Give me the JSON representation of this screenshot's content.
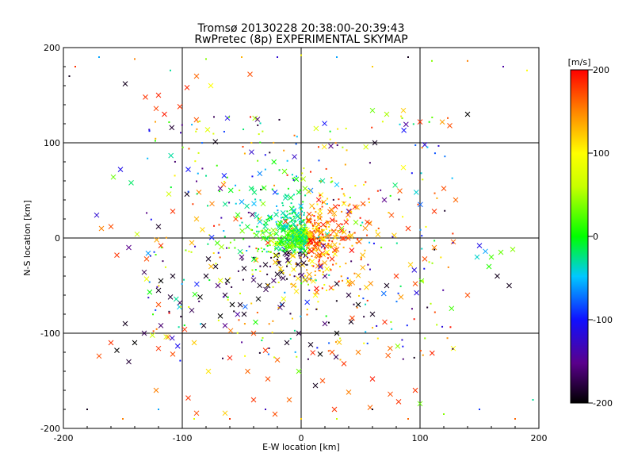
{
  "chart_data": {
    "type": "scatter",
    "title": "Tromsø 20130228 20:38:00-20:39:43",
    "subtitle": "RwPretec (8p) EXPERIMENTAL SKYMAP",
    "xlabel": "E-W location [km]",
    "ylabel": "N-S location [km]",
    "xlim": [
      -200,
      200
    ],
    "ylim": [
      -200,
      200
    ],
    "xticks": [
      -200,
      -100,
      0,
      100,
      200
    ],
    "yticks": [
      -200,
      -100,
      0,
      100,
      200
    ],
    "grid": true,
    "colorbar": {
      "label": "[m/s]",
      "min": -200,
      "max": 200,
      "ticks": [
        200,
        100,
        0,
        -100,
        -200
      ]
    },
    "markers": [
      "x",
      "dot"
    ],
    "points": [
      [
        -148,
        162,
        -190,
        "x"
      ],
      [
        -131,
        148,
        180,
        "x"
      ],
      [
        -122,
        136,
        175,
        "x"
      ],
      [
        -115,
        130,
        190,
        "x"
      ],
      [
        -96,
        158,
        185,
        "x"
      ],
      [
        -88,
        170,
        160,
        "x"
      ],
      [
        -76,
        160,
        100,
        "x"
      ],
      [
        -62,
        126,
        -110,
        "x"
      ],
      [
        -43,
        172,
        170,
        "x"
      ],
      [
        -120,
        150,
        185,
        "x"
      ],
      [
        -102,
        138,
        180,
        "x"
      ],
      [
        -152,
        72,
        -110,
        "x"
      ],
      [
        -158,
        64,
        30,
        "x"
      ],
      [
        -143,
        58,
        -20,
        "x"
      ],
      [
        -172,
        24,
        -120,
        "x"
      ],
      [
        -168,
        10,
        150,
        "x"
      ],
      [
        -160,
        12,
        170,
        "x"
      ],
      [
        -138,
        4,
        60,
        "x"
      ],
      [
        -155,
        -18,
        180,
        "x"
      ],
      [
        -130,
        -43,
        90,
        "x"
      ],
      [
        -120,
        -70,
        170,
        "x"
      ],
      [
        -95,
        72,
        -100,
        "x"
      ],
      [
        -86,
        48,
        150,
        "x"
      ],
      [
        -88,
        20,
        130,
        "x"
      ],
      [
        -92,
        -5,
        130,
        "x"
      ],
      [
        -78,
        -22,
        -190,
        "x"
      ],
      [
        -62,
        -45,
        -200,
        "x"
      ],
      [
        -55,
        20,
        170,
        "x"
      ],
      [
        -35,
        20,
        120,
        "x"
      ],
      [
        -28,
        -5,
        180,
        "x"
      ],
      [
        -50,
        -20,
        -160,
        "x"
      ],
      [
        -98,
        -96,
        180,
        "x"
      ],
      [
        -112,
        -104,
        160,
        "x"
      ],
      [
        -120,
        -116,
        180,
        "x"
      ],
      [
        -108,
        -122,
        170,
        "x"
      ],
      [
        -90,
        -110,
        120,
        "x"
      ],
      [
        -82,
        -92,
        -190,
        "x"
      ],
      [
        -64,
        -92,
        -150,
        "x"
      ],
      [
        -60,
        -126,
        190,
        "x"
      ],
      [
        -45,
        -140,
        160,
        "x"
      ],
      [
        -28,
        -148,
        170,
        "x"
      ],
      [
        -95,
        -168,
        180,
        "x"
      ],
      [
        -88,
        -184,
        170,
        "x"
      ],
      [
        -122,
        -160,
        150,
        "x"
      ],
      [
        -78,
        -140,
        110,
        "x"
      ],
      [
        -64,
        -184,
        120,
        "x"
      ],
      [
        -40,
        -170,
        180,
        "x"
      ],
      [
        -22,
        -185,
        170,
        "x"
      ],
      [
        -10,
        -170,
        160,
        "x"
      ],
      [
        -2,
        -140,
        30,
        "x"
      ],
      [
        12,
        -155,
        -190,
        "x"
      ],
      [
        18,
        -150,
        170,
        "x"
      ],
      [
        28,
        -180,
        180,
        "x"
      ],
      [
        40,
        -162,
        150,
        "x"
      ],
      [
        58,
        -178,
        160,
        "x"
      ],
      [
        75,
        -164,
        170,
        "x"
      ],
      [
        82,
        -172,
        180,
        "x"
      ],
      [
        96,
        -160,
        180,
        "x"
      ],
      [
        100,
        -174,
        30,
        "x"
      ],
      [
        60,
        -148,
        190,
        "x"
      ],
      [
        128,
        -116,
        100,
        "x"
      ],
      [
        150,
        -8,
        -110,
        "x"
      ],
      [
        155,
        -14,
        -60,
        "x"
      ],
      [
        160,
        -20,
        20,
        "x"
      ],
      [
        148,
        -20,
        -40,
        "x"
      ],
      [
        158,
        -30,
        10,
        "x"
      ],
      [
        168,
        -15,
        30,
        "x"
      ],
      [
        178,
        -12,
        40,
        "x"
      ],
      [
        165,
        -40,
        -190,
        "x"
      ],
      [
        175,
        -50,
        -190,
        "x"
      ],
      [
        140,
        -60,
        170,
        "x"
      ],
      [
        140,
        130,
        -200,
        "x"
      ],
      [
        125,
        118,
        170,
        "x"
      ],
      [
        100,
        122,
        180,
        "x"
      ],
      [
        86,
        134,
        120,
        "x"
      ],
      [
        72,
        130,
        50,
        "x"
      ],
      [
        60,
        134,
        30,
        "x"
      ],
      [
        104,
        98,
        -120,
        "x"
      ],
      [
        86,
        74,
        100,
        "x"
      ],
      [
        62,
        100,
        -190,
        "x"
      ],
      [
        120,
        52,
        170,
        "x"
      ],
      [
        130,
        40,
        160,
        "x"
      ],
      [
        112,
        28,
        180,
        "x"
      ],
      [
        70,
        40,
        -150,
        "x"
      ],
      [
        52,
        36,
        170,
        "x"
      ],
      [
        40,
        28,
        -100,
        "x"
      ],
      [
        30,
        56,
        -50,
        "x"
      ],
      [
        18,
        60,
        -30,
        "x"
      ],
      [
        8,
        50,
        -70,
        "x"
      ],
      [
        -2,
        48,
        -10,
        "x"
      ],
      [
        -12,
        44,
        -30,
        "x"
      ],
      [
        0,
        0,
        0,
        "x"
      ],
      [
        3,
        4,
        10,
        "x"
      ],
      [
        -3,
        -2,
        -10,
        "x"
      ],
      [
        5,
        -6,
        60,
        "x"
      ],
      [
        -6,
        5,
        -40,
        "x"
      ],
      [
        8,
        2,
        120,
        "x"
      ],
      [
        -8,
        -4,
        -80,
        "x"
      ],
      [
        12,
        -10,
        170,
        "x"
      ],
      [
        -10,
        10,
        30,
        "x"
      ],
      [
        14,
        8,
        150,
        "x"
      ],
      [
        -14,
        -12,
        -120,
        "x"
      ],
      [
        18,
        -16,
        180,
        "x"
      ],
      [
        -18,
        16,
        70,
        "x"
      ],
      [
        22,
        4,
        -30,
        "x"
      ],
      [
        -22,
        -6,
        100,
        "x"
      ],
      [
        26,
        -22,
        180,
        "x"
      ],
      [
        -26,
        22,
        -60,
        "x"
      ],
      [
        30,
        -12,
        160,
        "x"
      ],
      [
        -30,
        -28,
        -190,
        "x"
      ],
      [
        34,
        10,
        40,
        "x"
      ],
      [
        20,
        -40,
        -160,
        "x"
      ],
      [
        30,
        -48,
        -190,
        "x"
      ],
      [
        40,
        -60,
        -180,
        "x"
      ],
      [
        48,
        -70,
        -200,
        "x"
      ],
      [
        60,
        -80,
        -190,
        "x"
      ],
      [
        20,
        -90,
        -160,
        "x"
      ],
      [
        30,
        -100,
        -200,
        "x"
      ],
      [
        42,
        -88,
        -190,
        "x"
      ],
      [
        12,
        -60,
        100,
        "x"
      ],
      [
        -4,
        -56,
        110,
        "x"
      ],
      [
        -20,
        -38,
        -190,
        "x"
      ],
      [
        -28,
        -50,
        -200,
        "x"
      ],
      [
        -40,
        -44,
        -170,
        "x"
      ],
      [
        -48,
        -32,
        -190,
        "x"
      ],
      [
        -36,
        -64,
        -200,
        "x"
      ],
      [
        -16,
        -70,
        -180,
        "x"
      ],
      [
        -58,
        -70,
        -200,
        "x"
      ],
      [
        -70,
        -50,
        -160,
        "x"
      ],
      [
        -80,
        -40,
        -190,
        "x"
      ],
      [
        -48,
        -80,
        -190,
        "x"
      ],
      [
        -120,
        -55,
        -190,
        "x"
      ],
      [
        -110,
        -62,
        -180,
        "x"
      ],
      [
        -85,
        -62,
        -200,
        "x"
      ],
      [
        -102,
        -68,
        -170,
        "x"
      ],
      [
        -108,
        -40,
        -190,
        "x"
      ],
      [
        -118,
        -45,
        -200,
        "x"
      ],
      [
        -72,
        -30,
        -190,
        "x"
      ],
      [
        -64,
        -60,
        -180,
        "x"
      ],
      [
        -92,
        -76,
        -170,
        "x"
      ],
      [
        -68,
        -82,
        -200,
        "x"
      ],
      [
        -130,
        -22,
        170,
        "x"
      ],
      [
        -108,
        28,
        180,
        "x"
      ],
      [
        -118,
        -8,
        180,
        "x"
      ],
      [
        -75,
        36,
        150,
        "x"
      ],
      [
        -68,
        52,
        -150,
        "x"
      ],
      [
        -50,
        38,
        -60,
        "x"
      ],
      [
        -42,
        52,
        -20,
        "x"
      ],
      [
        -32,
        36,
        40,
        "x"
      ],
      [
        -22,
        48,
        -90,
        "x"
      ],
      [
        -14,
        70,
        30,
        "x"
      ],
      [
        80,
        -40,
        180,
        "x"
      ],
      [
        92,
        -28,
        120,
        "x"
      ],
      [
        104,
        -22,
        170,
        "x"
      ],
      [
        72,
        -50,
        -190,
        "x"
      ],
      [
        84,
        -62,
        140,
        "x"
      ],
      [
        96,
        -48,
        170,
        "x"
      ],
      [
        112,
        -10,
        150,
        "x"
      ],
      [
        128,
        -4,
        160,
        "x"
      ],
      [
        90,
        10,
        180,
        "x"
      ],
      [
        76,
        24,
        170,
        "x"
      ],
      [
        -40,
        -100,
        170,
        "x"
      ],
      [
        -30,
        -118,
        180,
        "x"
      ],
      [
        -20,
        -128,
        160,
        "x"
      ],
      [
        -12,
        -110,
        -190,
        "x"
      ],
      [
        -2,
        -100,
        -180,
        "x"
      ],
      [
        8,
        -112,
        -190,
        "x"
      ],
      [
        16,
        -122,
        -200,
        "x"
      ],
      [
        26,
        -120,
        170,
        "x"
      ],
      [
        36,
        -132,
        180,
        "x"
      ],
      [
        48,
        -120,
        150,
        "x"
      ],
      [
        -145,
        -10,
        -150,
        "x"
      ],
      [
        -132,
        -36,
        -170,
        "x"
      ],
      [
        -118,
        -92,
        -160,
        "x"
      ],
      [
        -132,
        -100,
        -170,
        "x"
      ],
      [
        -148,
        -90,
        -190,
        "x"
      ],
      [
        -155,
        -118,
        -200,
        "x"
      ],
      [
        -145,
        -130,
        -180,
        "x"
      ],
      [
        -160,
        -110,
        180,
        "x"
      ],
      [
        -170,
        -124,
        170,
        "x"
      ],
      [
        -140,
        -110,
        -200,
        "x"
      ],
      [
        -190,
        180,
        180,
        "dot"
      ],
      [
        -195,
        170,
        -190,
        "dot"
      ],
      [
        -170,
        190,
        -60,
        "dot"
      ],
      [
        -140,
        188,
        150,
        "dot"
      ],
      [
        -110,
        176,
        -30,
        "dot"
      ],
      [
        -80,
        188,
        40,
        "dot"
      ],
      [
        -50,
        190,
        130,
        "dot"
      ],
      [
        -20,
        190,
        -120,
        "dot"
      ],
      [
        0,
        192,
        100,
        "dot"
      ],
      [
        30,
        190,
        -60,
        "dot"
      ],
      [
        60,
        180,
        120,
        "dot"
      ],
      [
        90,
        190,
        -190,
        "dot"
      ],
      [
        110,
        186,
        40,
        "dot"
      ],
      [
        140,
        186,
        150,
        "dot"
      ],
      [
        170,
        180,
        -140,
        "dot"
      ],
      [
        190,
        176,
        100,
        "dot"
      ],
      [
        -180,
        -180,
        -190,
        "dot"
      ],
      [
        -150,
        -190,
        150,
        "dot"
      ],
      [
        -120,
        -180,
        -60,
        "dot"
      ],
      [
        -90,
        -190,
        80,
        "dot"
      ],
      [
        -60,
        -190,
        180,
        "dot"
      ],
      [
        -30,
        -180,
        -130,
        "dot"
      ],
      [
        0,
        -190,
        120,
        "dot"
      ],
      [
        30,
        -190,
        60,
        "dot"
      ],
      [
        60,
        -180,
        -190,
        "dot"
      ],
      [
        90,
        -190,
        160,
        "dot"
      ],
      [
        120,
        -185,
        40,
        "dot"
      ],
      [
        150,
        -180,
        -90,
        "dot"
      ],
      [
        180,
        -190,
        160,
        "dot"
      ],
      [
        195,
        -170,
        -30,
        "dot"
      ]
    ],
    "cluster": {
      "center": [
        0,
        0
      ],
      "count": 900,
      "spread": 35
    }
  }
}
